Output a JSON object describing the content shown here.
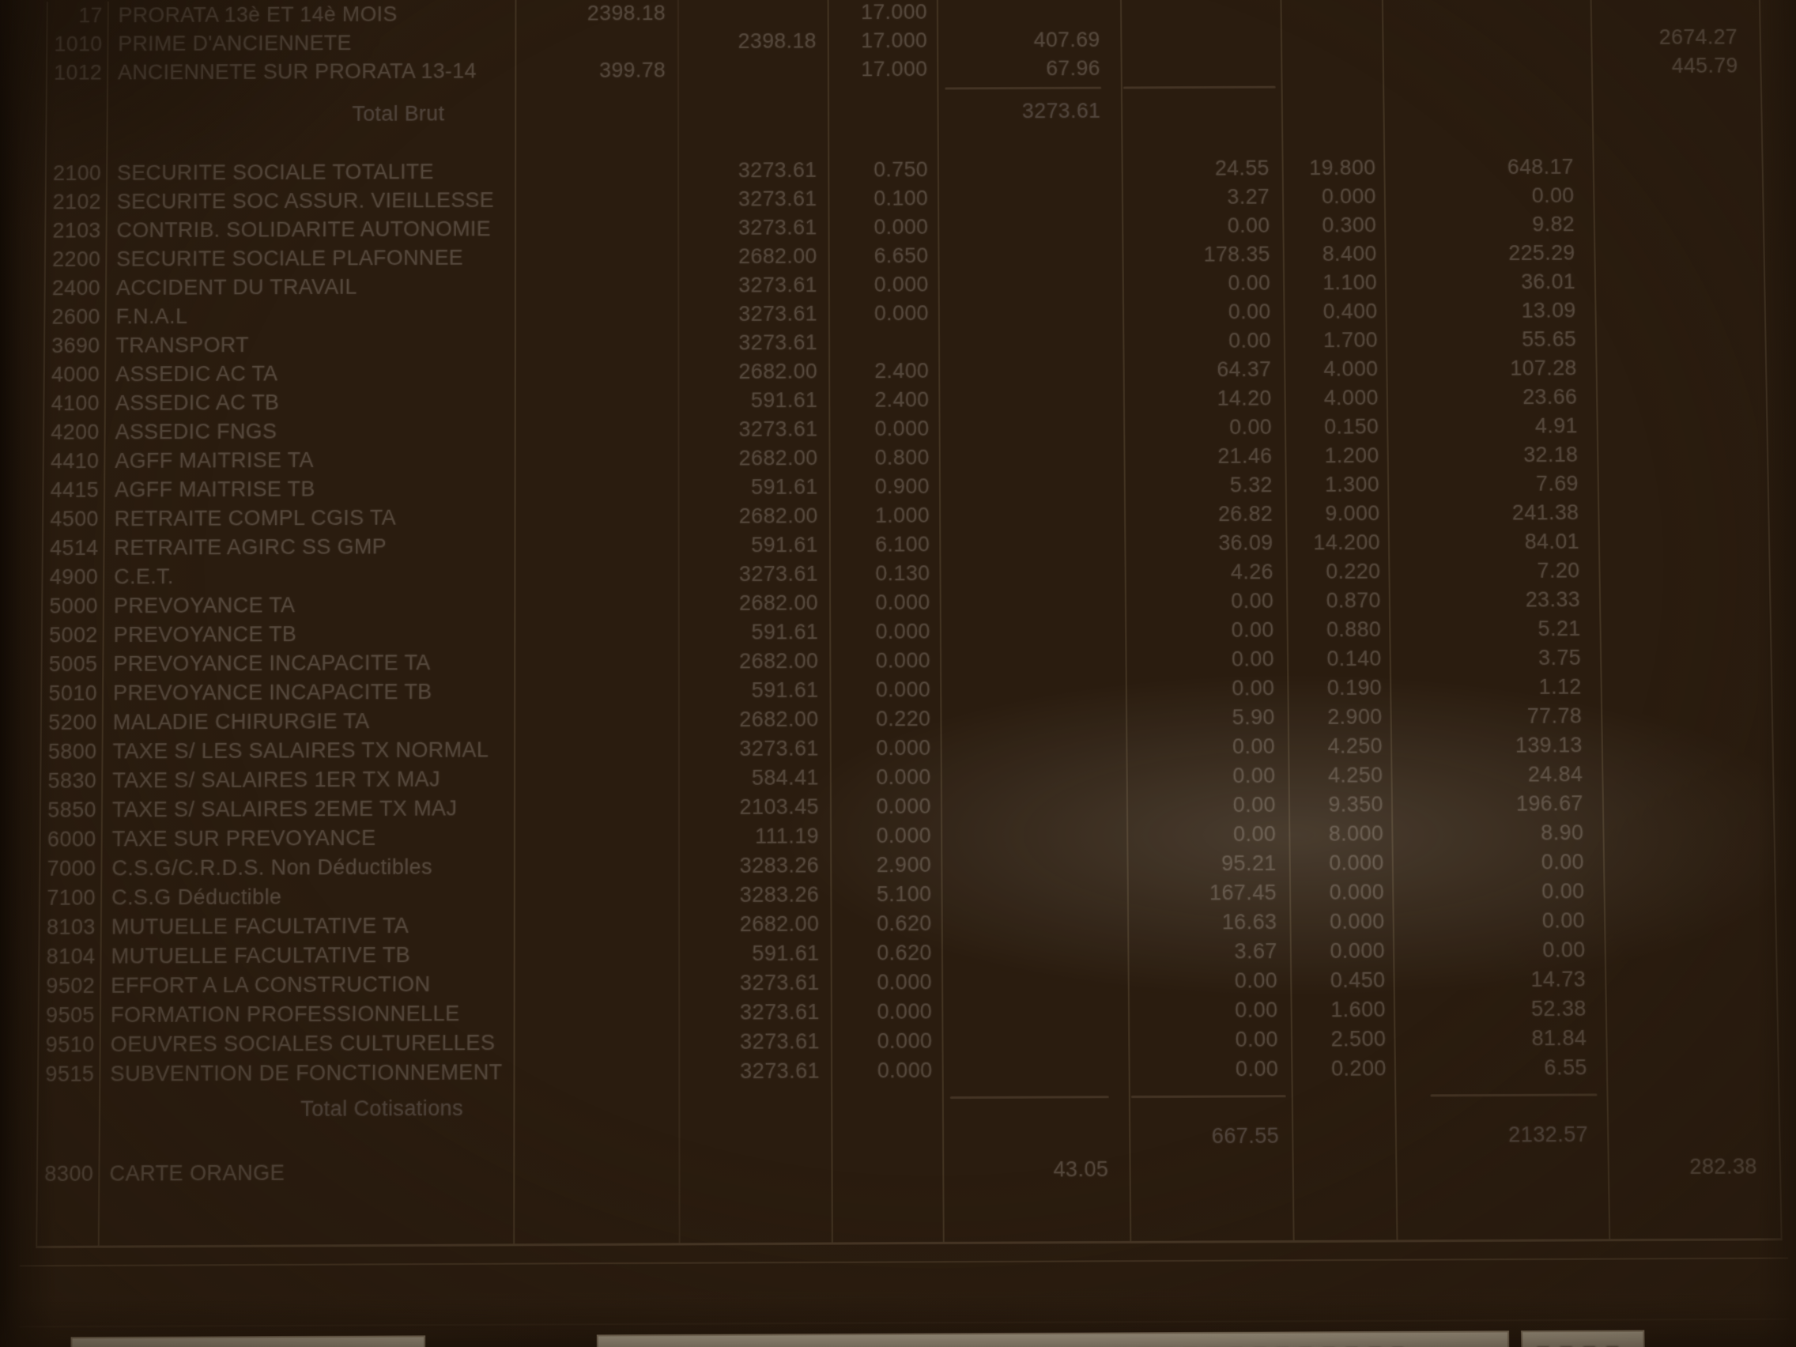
{
  "payslip": {
    "earnings": [
      {
        "code": "17",
        "label": "PRORATA 13è ET 14è MOIS",
        "base_a": "2398.18",
        "rate": "17.000"
      },
      {
        "code": "1010",
        "label": "PRIME D'ANCIENNETE",
        "base": "2398.18",
        "rate": "17.000",
        "gain": "407.69",
        "cumul": "2674.27"
      },
      {
        "code": "1012",
        "label": "ANCIENNETE SUR PRORATA 13-14",
        "base_a": "399.78",
        "rate": "17.000",
        "gain": "67.96",
        "cumul": "445.79"
      }
    ],
    "total_brut": {
      "label": "Total Brut",
      "amount": "3273.61"
    },
    "contributions": [
      {
        "code": "2100",
        "label": "SECURITE SOCIALE TOTALITE",
        "base": "3273.61",
        "rate": "0.750",
        "amount_emp": "24.55",
        "rate_er": "19.800",
        "amount_er": "648.17"
      },
      {
        "code": "2102",
        "label": "SECURITE SOC ASSUR. VIEILLESSE",
        "base": "3273.61",
        "rate": "0.100",
        "amount_emp": "3.27",
        "rate_er": "0.000",
        "amount_er": "0.00"
      },
      {
        "code": "2103",
        "label": "CONTRIB. SOLIDARITE AUTONOMIE",
        "base": "3273.61",
        "rate": "0.000",
        "amount_emp": "0.00",
        "rate_er": "0.300",
        "amount_er": "9.82"
      },
      {
        "code": "2200",
        "label": "SECURITE SOCIALE PLAFONNEE",
        "base": "2682.00",
        "rate": "6.650",
        "amount_emp": "178.35",
        "rate_er": "8.400",
        "amount_er": "225.29"
      },
      {
        "code": "2400",
        "label": "ACCIDENT DU TRAVAIL",
        "base": "3273.61",
        "rate": "0.000",
        "amount_emp": "0.00",
        "rate_er": "1.100",
        "amount_er": "36.01"
      },
      {
        "code": "2600",
        "label": "F.N.A.L",
        "base": "3273.61",
        "rate": "0.000",
        "amount_emp": "0.00",
        "rate_er": "0.400",
        "amount_er": "13.09"
      },
      {
        "code": "3690",
        "label": "TRANSPORT",
        "base": "3273.61",
        "rate": "",
        "amount_emp": "0.00",
        "rate_er": "1.700",
        "amount_er": "55.65"
      },
      {
        "code": "4000",
        "label": "ASSEDIC AC TA",
        "base": "2682.00",
        "rate": "2.400",
        "amount_emp": "64.37",
        "rate_er": "4.000",
        "amount_er": "107.28"
      },
      {
        "code": "4100",
        "label": "ASSEDIC AC TB",
        "base": "591.61",
        "rate": "2.400",
        "amount_emp": "14.20",
        "rate_er": "4.000",
        "amount_er": "23.66"
      },
      {
        "code": "4200",
        "label": "ASSEDIC FNGS",
        "base": "3273.61",
        "rate": "0.000",
        "amount_emp": "0.00",
        "rate_er": "0.150",
        "amount_er": "4.91"
      },
      {
        "code": "4410",
        "label": "AGFF MAITRISE TA",
        "base": "2682.00",
        "rate": "0.800",
        "amount_emp": "21.46",
        "rate_er": "1.200",
        "amount_er": "32.18"
      },
      {
        "code": "4415",
        "label": "AGFF MAITRISE TB",
        "base": "591.61",
        "rate": "0.900",
        "amount_emp": "5.32",
        "rate_er": "1.300",
        "amount_er": "7.69"
      },
      {
        "code": "4500",
        "label": "RETRAITE COMPL CGIS TA",
        "base": "2682.00",
        "rate": "1.000",
        "amount_emp": "26.82",
        "rate_er": "9.000",
        "amount_er": "241.38"
      },
      {
        "code": "4514",
        "label": "RETRAITE AGIRC SS GMP",
        "base": "591.61",
        "rate": "6.100",
        "amount_emp": "36.09",
        "rate_er": "14.200",
        "amount_er": "84.01"
      },
      {
        "code": "4900",
        "label": "C.E.T.",
        "base": "3273.61",
        "rate": "0.130",
        "amount_emp": "4.26",
        "rate_er": "0.220",
        "amount_er": "7.20"
      },
      {
        "code": "5000",
        "label": "PREVOYANCE  TA",
        "base": "2682.00",
        "rate": "0.000",
        "amount_emp": "0.00",
        "rate_er": "0.870",
        "amount_er": "23.33"
      },
      {
        "code": "5002",
        "label": "PREVOYANCE  TB",
        "base": "591.61",
        "rate": "0.000",
        "amount_emp": "0.00",
        "rate_er": "0.880",
        "amount_er": "5.21"
      },
      {
        "code": "5005",
        "label": "PREVOYANCE INCAPACITE TA",
        "base": "2682.00",
        "rate": "0.000",
        "amount_emp": "0.00",
        "rate_er": "0.140",
        "amount_er": "3.75"
      },
      {
        "code": "5010",
        "label": "PREVOYANCE INCAPACITE TB",
        "base": "591.61",
        "rate": "0.000",
        "amount_emp": "0.00",
        "rate_er": "0.190",
        "amount_er": "1.12"
      },
      {
        "code": "5200",
        "label": "MALADIE CHIRURGIE TA",
        "base": "2682.00",
        "rate": "0.220",
        "amount_emp": "5.90",
        "rate_er": "2.900",
        "amount_er": "77.78"
      },
      {
        "code": "5800",
        "label": "TAXE S/ LES SALAIRES TX NORMAL",
        "base": "3273.61",
        "rate": "0.000",
        "amount_emp": "0.00",
        "rate_er": "4.250",
        "amount_er": "139.13"
      },
      {
        "code": "5830",
        "label": "TAXE S/  SALAIRES 1ER TX MAJ",
        "base": "584.41",
        "rate": "0.000",
        "amount_emp": "0.00",
        "rate_er": "4.250",
        "amount_er": "24.84"
      },
      {
        "code": "5850",
        "label": "TAXE S/ SALAIRES 2EME TX MAJ",
        "base": "2103.45",
        "rate": "0.000",
        "amount_emp": "0.00",
        "rate_er": "9.350",
        "amount_er": "196.67"
      },
      {
        "code": "6000",
        "label": "TAXE SUR PREVOYANCE",
        "base": "111.19",
        "rate": "0.000",
        "amount_emp": "0.00",
        "rate_er": "8.000",
        "amount_er": "8.90"
      },
      {
        "code": "7000",
        "label": "C.S.G/C.R.D.S. Non Déductibles",
        "base": "3283.26",
        "rate": "2.900",
        "amount_emp": "95.21",
        "rate_er": "0.000",
        "amount_er": "0.00"
      },
      {
        "code": "7100",
        "label": "C.S.G Déductible",
        "base": "3283.26",
        "rate": "5.100",
        "amount_emp": "167.45",
        "rate_er": "0.000",
        "amount_er": "0.00"
      },
      {
        "code": "8103",
        "label": "MUTUELLE FACULTATIVE TA",
        "base": "2682.00",
        "rate": "0.620",
        "amount_emp": "16.63",
        "rate_er": "0.000",
        "amount_er": "0.00"
      },
      {
        "code": "8104",
        "label": "MUTUELLE FACULTATIVE TB",
        "base": "591.61",
        "rate": "0.620",
        "amount_emp": "3.67",
        "rate_er": "0.000",
        "amount_er": "0.00"
      },
      {
        "code": "9502",
        "label": "EFFORT A LA CONSTRUCTION",
        "base": "3273.61",
        "rate": "0.000",
        "amount_emp": "0.00",
        "rate_er": "0.450",
        "amount_er": "14.73"
      },
      {
        "code": "9505",
        "label": "FORMATION PROFESSIONNELLE",
        "base": "3273.61",
        "rate": "0.000",
        "amount_emp": "0.00",
        "rate_er": "1.600",
        "amount_er": "52.38"
      },
      {
        "code": "9510",
        "label": "OEUVRES SOCIALES CULTURELLES",
        "base": "3273.61",
        "rate": "0.000",
        "amount_emp": "0.00",
        "rate_er": "2.500",
        "amount_er": "81.84"
      },
      {
        "code": "9515",
        "label": "SUBVENTION DE FONCTIONNEMENT",
        "base": "3273.61",
        "rate": "0.000",
        "amount_emp": "0.00",
        "rate_er": "0.200",
        "amount_er": "6.55"
      }
    ],
    "total_cotisations": {
      "label": "Total Cotisations",
      "amount_emp": "667.55",
      "amount_er": "2132.57"
    },
    "other_items": [
      {
        "code": "8300",
        "label": "CARTE ORANGE",
        "gain": "43.05",
        "cumul": "282.38"
      }
    ]
  },
  "colors": {
    "paper": "#d2c6ad",
    "ink": "#54463a",
    "backdrop": "#2a1c0f"
  }
}
